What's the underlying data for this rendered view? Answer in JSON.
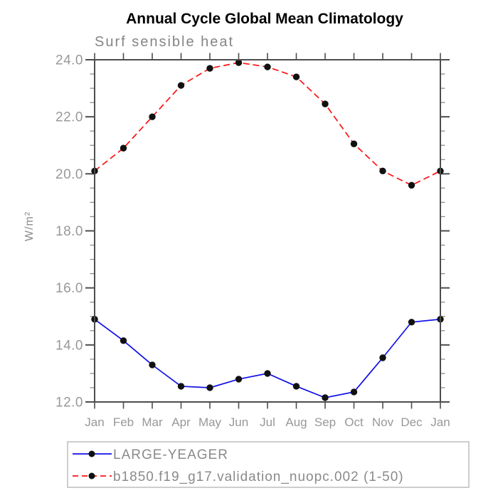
{
  "chart_data": {
    "type": "line",
    "title": "Annual Cycle Global Mean Climatology",
    "subtitle": "Surf sensible heat",
    "ylabel": "W/m²",
    "xlabel": "",
    "categories": [
      "Jan",
      "Feb",
      "Mar",
      "Apr",
      "May",
      "Jun",
      "Jul",
      "Aug",
      "Sep",
      "Oct",
      "Nov",
      "Dec",
      "Jan"
    ],
    "ylim": [
      12.0,
      24.0
    ],
    "yticks": [
      12.0,
      14.0,
      16.0,
      18.0,
      20.0,
      22.0,
      24.0
    ],
    "y_minor_step": 0.5,
    "grid": false,
    "legend_position": "bottom",
    "colors": {
      "axis": "#4d4d4d",
      "tick_labels": "#989898",
      "subtitle": "#858585",
      "title": "#000000",
      "legend_border": "#b3b3b3",
      "marker": "#111111"
    },
    "series": [
      {
        "name": "LARGE-YEAGER",
        "color": "#0f0fe8",
        "line_style": "solid",
        "marker": "filled-circle",
        "marker_color": "#111111",
        "values": [
          14.9,
          14.15,
          13.3,
          12.55,
          12.5,
          12.8,
          13.0,
          12.55,
          12.15,
          12.35,
          13.55,
          14.8,
          14.9
        ]
      },
      {
        "name": "b1850.f19_g17.validation_nuopc.002 (1-50)",
        "color": "#fb1315",
        "line_style": "dashed",
        "marker": "filled-circle",
        "marker_color": "#111111",
        "values": [
          20.1,
          20.9,
          22.0,
          23.1,
          23.7,
          23.9,
          23.75,
          23.4,
          22.45,
          21.05,
          20.1,
          19.6,
          20.1
        ]
      }
    ]
  }
}
